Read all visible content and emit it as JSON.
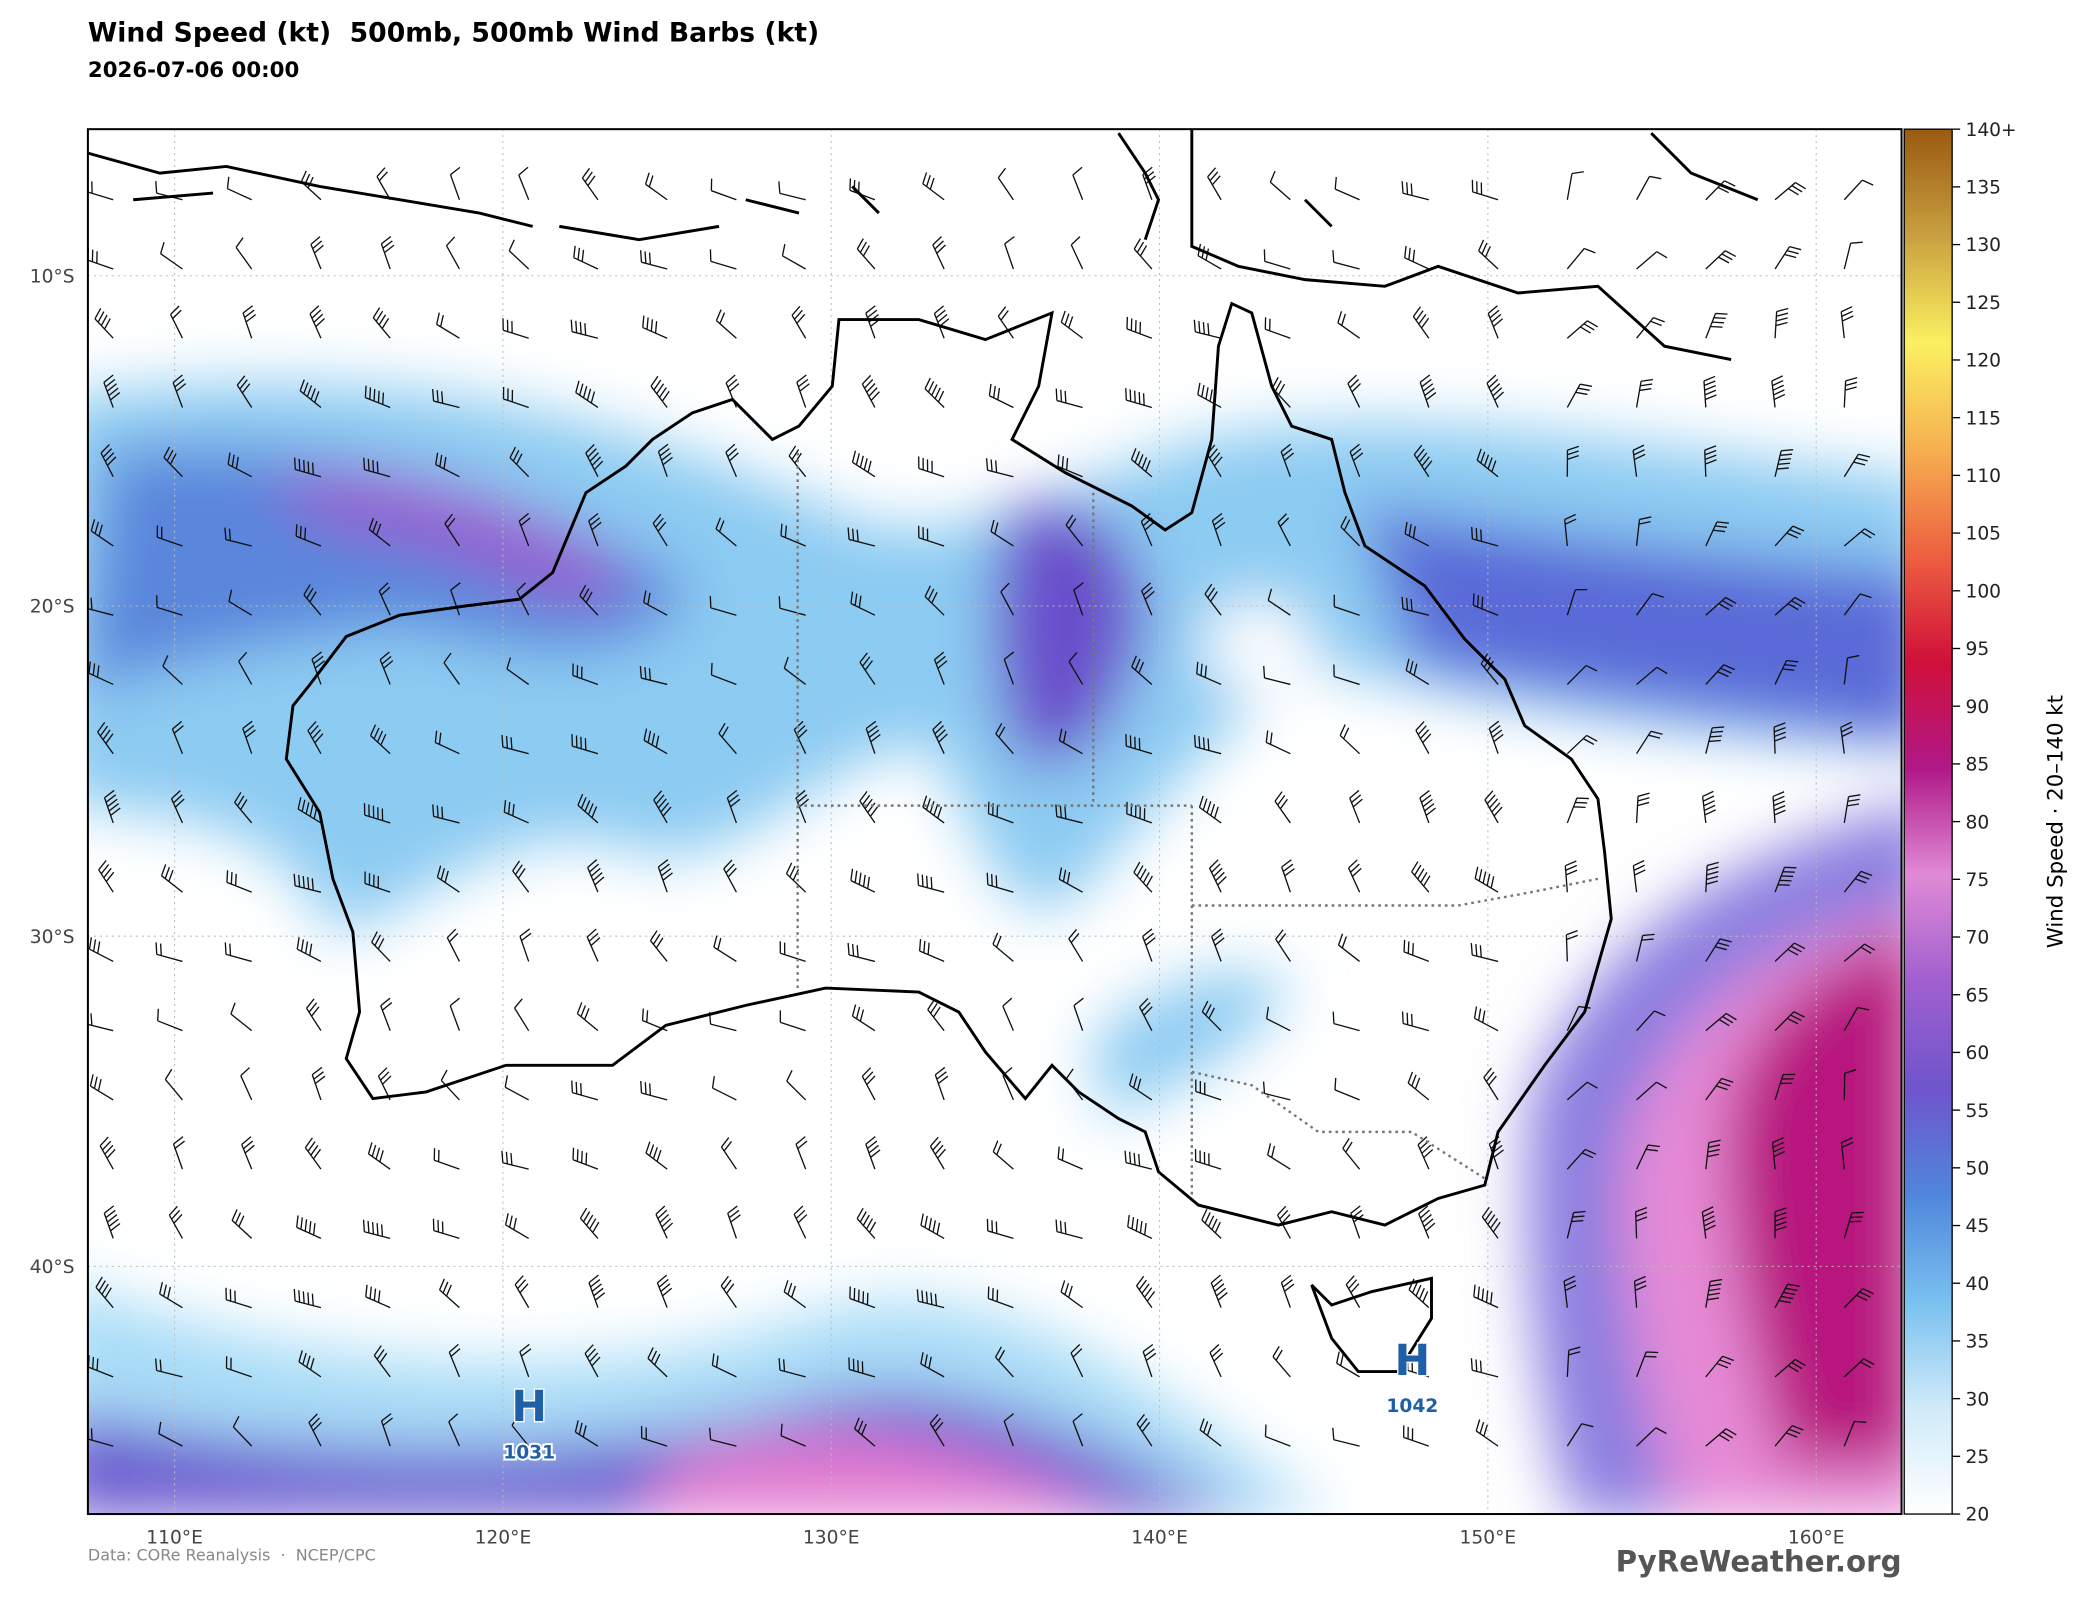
{
  "chart_data": {
    "type": "map",
    "title": "Wind Speed (kt)  500mb, 500mb Wind Barbs (kt)",
    "subtitle": "2026-07-06 00:00",
    "xlim": [
      107.36,
      162.6
    ],
    "ylim": [
      -47.5,
      -5.56
    ],
    "xticks": [
      {
        "value": 110,
        "label": "110°E"
      },
      {
        "value": 120,
        "label": "120°E"
      },
      {
        "value": 130,
        "label": "130°E"
      },
      {
        "value": 140,
        "label": "140°E"
      },
      {
        "value": 150,
        "label": "150°E"
      },
      {
        "value": 160,
        "label": "160°E"
      }
    ],
    "yticks": [
      {
        "value": -10,
        "label": "10°S"
      },
      {
        "value": -20,
        "label": "20°S"
      },
      {
        "value": -30,
        "label": "30°S"
      },
      {
        "value": -40,
        "label": "40°S"
      }
    ],
    "grid": true,
    "colorbar": {
      "label": "Wind Speed · 20–140 kt",
      "ylim": [
        20,
        140
      ],
      "yticks": [
        20,
        25,
        30,
        35,
        40,
        45,
        50,
        55,
        60,
        65,
        70,
        75,
        80,
        85,
        90,
        95,
        100,
        105,
        110,
        115,
        120,
        125,
        130,
        135,
        {
          "value": 140,
          "label": "140+"
        }
      ],
      "colors": [
        "#ffffff",
        "#cfeaf9",
        "#79c0ef",
        "#4f86db",
        "#7055cc",
        "#a05fd0",
        "#e08ad6",
        "#b01888",
        "#d0103a",
        "#ee6040",
        "#f6b050",
        "#fbf060",
        "#c8a040",
        "#9a5a10"
      ]
    },
    "highs": [
      {
        "label": "H",
        "value": 1031,
        "lon": 120.8,
        "lat": -44.2
      },
      {
        "label": "H",
        "value": 1042,
        "lon": 147.7,
        "lat": -42.8
      }
    ],
    "source": "Data: CORe Reanalysis  ·  NCEP/CPC",
    "brand": "PyReWeather.org"
  }
}
